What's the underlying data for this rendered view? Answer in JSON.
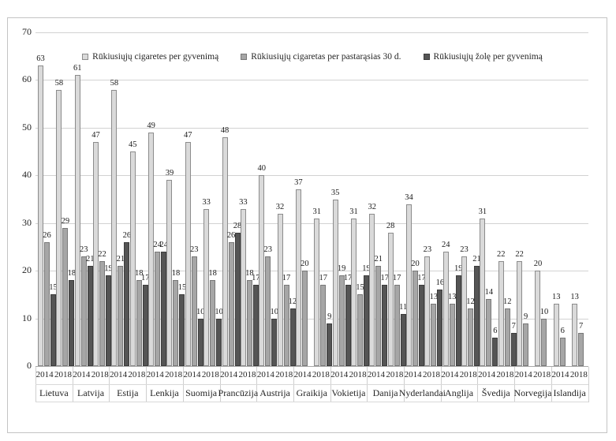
{
  "chart_data": {
    "type": "bar",
    "title": "",
    "xlabel": "",
    "ylabel": "",
    "ylim": [
      0,
      70
    ],
    "yticks": [
      0,
      10,
      20,
      30,
      40,
      50,
      60,
      70
    ],
    "grid": true,
    "legend_position": "top-center",
    "categories": [
      "Lietuva",
      "Latvija",
      "Estija",
      "Lenkija",
      "Suomija",
      "Prancūzija",
      "Austrija",
      "Graikija",
      "Vokietija",
      "Danija",
      "Nyderlandai",
      "Anglija",
      "Švedija",
      "Norvegija",
      "Islandija"
    ],
    "year_labels": [
      "2014",
      "2018"
    ],
    "series": [
      {
        "name": "Rūkiusiųjų cigaretes per gyvenimą",
        "color": "#dadada",
        "border_color": "#8c8c8c",
        "values": [
          [
            63,
            58
          ],
          [
            61,
            47
          ],
          [
            58,
            45
          ],
          [
            49,
            39
          ],
          [
            47,
            33
          ],
          [
            48,
            33
          ],
          [
            40,
            32
          ],
          [
            37,
            31
          ],
          [
            35,
            31
          ],
          [
            32,
            28
          ],
          [
            34,
            23
          ],
          [
            24,
            23
          ],
          [
            31,
            22
          ],
          [
            22,
            20
          ],
          [
            13,
            13
          ]
        ]
      },
      {
        "name": "Rūkiusiųjų cigaretas per pastarąsias 30 d.",
        "color": "#a6a6a6",
        "border_color": "#787878",
        "values": [
          [
            26,
            29
          ],
          [
            23,
            22
          ],
          [
            21,
            18
          ],
          [
            24,
            18
          ],
          [
            23,
            18
          ],
          [
            26,
            18
          ],
          [
            23,
            17
          ],
          [
            20,
            17
          ],
          [
            19,
            15
          ],
          [
            21,
            17
          ],
          [
            20,
            13
          ],
          [
            13,
            12
          ],
          [
            14,
            12
          ],
          [
            9,
            10
          ],
          [
            6,
            7
          ]
        ]
      },
      {
        "name": "Rūkiusiųjų žolę per gyvenimą",
        "color": "#555555",
        "border_color": "#3c3c3c",
        "values": [
          [
            15,
            18
          ],
          [
            21,
            19
          ],
          [
            26,
            17
          ],
          [
            24,
            15
          ],
          [
            10,
            10
          ],
          [
            28,
            17
          ],
          [
            10,
            12
          ],
          [
            null,
            9
          ],
          [
            17,
            19
          ],
          [
            17,
            11
          ],
          [
            17,
            16
          ],
          [
            19,
            21
          ],
          [
            6,
            7
          ],
          [
            null,
            null
          ],
          [
            null,
            null
          ]
        ]
      }
    ]
  }
}
